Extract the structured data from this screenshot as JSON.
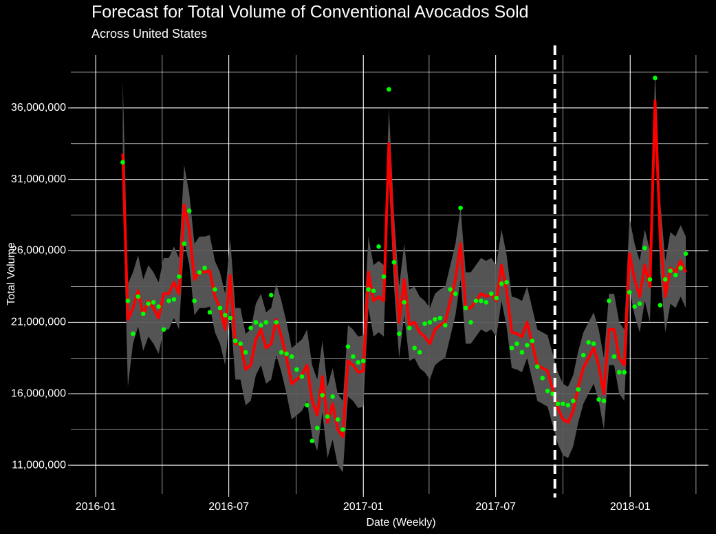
{
  "chart_data": {
    "type": "line",
    "title": "Forecast for Total Volume of Conventional Avocados Sold",
    "subtitle": "Across United States",
    "x_label": "Date (Weekly)",
    "y_label": "Total Volume",
    "x": [
      "2016-02-07",
      "2016-02-14",
      "2016-02-21",
      "2016-02-28",
      "2016-03-06",
      "2016-03-13",
      "2016-03-20",
      "2016-03-27",
      "2016-04-03",
      "2016-04-10",
      "2016-04-17",
      "2016-04-24",
      "2016-05-01",
      "2016-05-08",
      "2016-05-15",
      "2016-05-22",
      "2016-05-29",
      "2016-06-05",
      "2016-06-12",
      "2016-06-19",
      "2016-06-26",
      "2016-07-03",
      "2016-07-10",
      "2016-07-17",
      "2016-07-24",
      "2016-07-31",
      "2016-08-07",
      "2016-08-14",
      "2016-08-21",
      "2016-08-28",
      "2016-09-04",
      "2016-09-11",
      "2016-09-18",
      "2016-09-25",
      "2016-10-02",
      "2016-10-09",
      "2016-10-16",
      "2016-10-23",
      "2016-10-30",
      "2016-11-06",
      "2016-11-13",
      "2016-11-20",
      "2016-11-27",
      "2016-12-04",
      "2016-12-11",
      "2016-12-18",
      "2016-12-25",
      "2017-01-01",
      "2017-01-08",
      "2017-01-15",
      "2017-01-22",
      "2017-01-29",
      "2017-02-05",
      "2017-02-12",
      "2017-02-19",
      "2017-02-26",
      "2017-03-05",
      "2017-03-12",
      "2017-03-19",
      "2017-03-26",
      "2017-04-02",
      "2017-04-09",
      "2017-04-16",
      "2017-04-23",
      "2017-04-30",
      "2017-05-07",
      "2017-05-14",
      "2017-05-21",
      "2017-05-28",
      "2017-06-04",
      "2017-06-11",
      "2017-06-18",
      "2017-06-25",
      "2017-07-02",
      "2017-07-09",
      "2017-07-16",
      "2017-07-23",
      "2017-07-30",
      "2017-08-06",
      "2017-08-13",
      "2017-08-20",
      "2017-08-27",
      "2017-09-03",
      "2017-09-10",
      "2017-09-17",
      "2017-09-24",
      "2017-10-01",
      "2017-10-08",
      "2017-10-15",
      "2017-10-22",
      "2017-10-29",
      "2017-11-05",
      "2017-11-12",
      "2017-11-19",
      "2017-11-26",
      "2017-12-03",
      "2017-12-10",
      "2017-12-17",
      "2017-12-24",
      "2017-12-31",
      "2018-01-07",
      "2018-01-14",
      "2018-01-21",
      "2018-01-28",
      "2018-02-04",
      "2018-02-11",
      "2018-02-18",
      "2018-02-25",
      "2018-03-04",
      "2018-03-11",
      "2018-03-18"
    ],
    "forecast": {
      "color": "#ff0000",
      "values": [
        32800000.0,
        21200000.0,
        22000000.0,
        23200000.0,
        21500000.0,
        22500000.0,
        22000000.0,
        21300000.0,
        23000000.0,
        23000000.0,
        23800000.0,
        23000000.0,
        29200000.0,
        27500000.0,
        24000000.0,
        24500000.0,
        24500000.0,
        24600000.0,
        22800000.0,
        22000000.0,
        20500000.0,
        24300000.0,
        19500000.0,
        19500000.0,
        17700000.0,
        18000000.0,
        19800000.0,
        20500000.0,
        19200000.0,
        19500000.0,
        21200000.0,
        20000000.0,
        18500000.0,
        16700000.0,
        17000000.0,
        17300000.0,
        18000000.0,
        15500000.0,
        14500000.0,
        17200000.0,
        14000000.0,
        15300000.0,
        13500000.0,
        13000000.0,
        18300000.0,
        18000000.0,
        17500000.0,
        17600000.0,
        24500000.0,
        22500000.0,
        22800000.0,
        22500000.0,
        33500000.0,
        26000000.0,
        21000000.0,
        24000000.0,
        20800000.0,
        21000000.0,
        20300000.0,
        20000000.0,
        19500000.0,
        20500000.0,
        20800000.0,
        21000000.0,
        22500000.0,
        24000000.0,
        26500000.0,
        22000000.0,
        22000000.0,
        22500000.0,
        23000000.0,
        22800000.0,
        23000000.0,
        22500000.0,
        25000000.0,
        23200000.0,
        20300000.0,
        20200000.0,
        20000000.0,
        21000000.0,
        19500000.0,
        18000000.0,
        17800000.0,
        17600000.0,
        16300000.0,
        15000000.0,
        14200000.0,
        14000000.0,
        14800000.0,
        16500000.0,
        17800000.0,
        18500000.0,
        19200000.0,
        18000000.0,
        16000000.0,
        20500000.0,
        20500000.0,
        18500000.0,
        18000000.0,
        25800000.0,
        24000000.0,
        22800000.0,
        25000000.0,
        23500000.0,
        36500000.0,
        27000000.0,
        22800000.0,
        24800000.0,
        24500000.0,
        25300000.0,
        24500000.0
      ]
    },
    "band": {
      "color": "#595959",
      "upper": [
        38000000.0,
        23700000.0,
        24500000.0,
        25700000.0,
        24000000.0,
        25000000.0,
        24500000.0,
        23800000.0,
        25500000.0,
        25500000.0,
        26300000.0,
        25500000.0,
        32000000.0,
        30000000.0,
        26500000.0,
        27000000.0,
        27000000.0,
        27100000.0,
        25300000.0,
        24500000.0,
        23000000.0,
        26800000.0,
        22000000.0,
        22000000.0,
        20200000.0,
        20500000.0,
        22300000.0,
        23000000.0,
        21700000.0,
        22000000.0,
        23700000.0,
        22500000.0,
        21000000.0,
        19200000.0,
        19500000.0,
        19800000.0,
        20500000.0,
        18000000.0,
        17000000.0,
        19700000.0,
        16500000.0,
        17800000.0,
        16000000.0,
        15500000.0,
        20800000.0,
        20500000.0,
        20000000.0,
        20100000.0,
        27000000.0,
        25000000.0,
        25300000.0,
        25000000.0,
        36000000.0,
        28500000.0,
        23500000.0,
        26500000.0,
        23300000.0,
        23500000.0,
        22800000.0,
        22500000.0,
        22000000.0,
        23000000.0,
        23300000.0,
        23500000.0,
        25000000.0,
        26500000.0,
        29000000.0,
        24500000.0,
        24500000.0,
        25000000.0,
        25500000.0,
        25300000.0,
        25500000.0,
        25000000.0,
        27500000.0,
        25700000.0,
        22800000.0,
        22700000.0,
        22500000.0,
        23500000.0,
        22000000.0,
        20500000.0,
        20300000.0,
        20100000.0,
        18800000.0,
        17500000.0,
        16700000.0,
        16500000.0,
        17300000.0,
        19000000.0,
        20300000.0,
        21000000.0,
        21700000.0,
        20500000.0,
        18500000.0,
        23000000.0,
        23000000.0,
        21000000.0,
        20500000.0,
        28300000.0,
        26500000.0,
        25300000.0,
        27500000.0,
        26000000.0,
        38500000.0,
        29500000.0,
        25300000.0,
        27300000.0,
        27000000.0,
        27800000.0,
        27000000.0
      ],
      "lower": [
        30300000.0,
        16500000.0,
        19500000.0,
        20700000.0,
        19000000.0,
        20000000.0,
        19500000.0,
        18800000.0,
        20500000.0,
        20500000.0,
        21300000.0,
        20500000.0,
        26700000.0,
        25000000.0,
        21500000.0,
        22000000.0,
        22000000.0,
        22100000.0,
        20300000.0,
        19500000.0,
        18000000.0,
        21800000.0,
        17000000.0,
        17000000.0,
        15200000.0,
        15500000.0,
        17300000.0,
        18000000.0,
        16700000.0,
        17000000.0,
        18700000.0,
        17500000.0,
        16000000.0,
        14200000.0,
        14500000.0,
        14800000.0,
        15500000.0,
        13000000.0,
        12000000.0,
        14700000.0,
        11500000.0,
        12800000.0,
        11000000.0,
        10500000.0,
        15800000.0,
        15500000.0,
        15000000.0,
        15100000.0,
        22000000.0,
        20000000.0,
        20300000.0,
        20000000.0,
        31000000.0,
        23500000.0,
        18500000.0,
        21500000.0,
        18300000.0,
        18500000.0,
        17800000.0,
        17500000.0,
        17000000.0,
        18000000.0,
        18300000.0,
        18500000.0,
        20000000.0,
        21500000.0,
        24000000.0,
        19500000.0,
        19500000.0,
        20000000.0,
        20500000.0,
        20300000.0,
        20500000.0,
        20000000.0,
        22500000.0,
        20700000.0,
        17800000.0,
        17700000.0,
        17500000.0,
        18500000.0,
        17000000.0,
        15500000.0,
        15300000.0,
        15100000.0,
        13800000.0,
        12500000.0,
        11700000.0,
        11500000.0,
        12300000.0,
        14000000.0,
        15300000.0,
        16000000.0,
        16700000.0,
        15500000.0,
        13500000.0,
        18000000.0,
        18000000.0,
        16000000.0,
        15500000.0,
        23300000.0,
        21500000.0,
        20300000.0,
        22500000.0,
        21000000.0,
        34000000.0,
        24500000.0,
        20300000.0,
        22300000.0,
        22000000.0,
        22800000.0,
        22000000.0
      ]
    },
    "actual": {
      "color": "#00ff00",
      "values": [
        32200000.0,
        22500000.0,
        20200000.0,
        22800000.0,
        21600000.0,
        22300000.0,
        22400000.0,
        22100000.0,
        20500000.0,
        22500000.0,
        22600000.0,
        24200000.0,
        26500000.0,
        28800000.0,
        22500000.0,
        24500000.0,
        24800000.0,
        21700000.0,
        23300000.0,
        22000000.0,
        21500000.0,
        21300000.0,
        19700000.0,
        19500000.0,
        18900000.0,
        20600000.0,
        21000000.0,
        20800000.0,
        21000000.0,
        22900000.0,
        21000000.0,
        18900000.0,
        18800000.0,
        18600000.0,
        17700000.0,
        17200000.0,
        15200000.0,
        12700000.0,
        13600000.0,
        15900000.0,
        14400000.0,
        15800000.0,
        14200000.0,
        13500000.0,
        19300000.0,
        18600000.0,
        18200000.0,
        18300000.0,
        23300000.0,
        23200000.0,
        26300000.0,
        24200000.0,
        37300000.0,
        25200000.0,
        20200000.0,
        22400000.0,
        20600000.0,
        19200000.0,
        18900000.0,
        20900000.0,
        21000000.0,
        21200000.0,
        21300000.0,
        20800000.0,
        23300000.0,
        23000000.0,
        29000000.0,
        22000000.0,
        21000000.0,
        22500000.0,
        22500000.0,
        22400000.0,
        23000000.0,
        22700000.0,
        23700000.0,
        23800000.0,
        19200000.0,
        19500000.0,
        18900000.0,
        19400000.0,
        19700000.0,
        17900000.0,
        17100000.0,
        16200000.0,
        16000000.0,
        15300000.0,
        15300000.0,
        15200000.0,
        15500000.0,
        16300000.0,
        18700000.0,
        19600000.0,
        19500000.0,
        15600000.0,
        15500000.0,
        22500000.0,
        18600000.0,
        17500000.0,
        17500000.0,
        23100000.0,
        22100000.0,
        22300000.0,
        26200000.0,
        24000000.0,
        38100000.0,
        22200000.0,
        24000000.0,
        24600000.0,
        24300000.0,
        24800000.0,
        25800000.0
      ]
    },
    "vline": "2017-09-20",
    "xlim": [
      "2015-11-28",
      "2018-04-18"
    ],
    "xticks": [
      {
        "value": "2016-01-01",
        "label": "2016-01"
      },
      {
        "value": "2016-07-01",
        "label": "2016-07"
      },
      {
        "value": "2017-01-01",
        "label": "2017-01"
      },
      {
        "value": "2017-07-01",
        "label": "2017-07"
      },
      {
        "value": "2018-01-01",
        "label": "2018-01"
      }
    ],
    "minor_xticks": [
      "2016-04-01",
      "2016-10-01",
      "2017-04-01",
      "2017-10-01",
      "2018-04-01"
    ],
    "ylim": [
      8980000.0,
      39700000.0
    ],
    "yticks": [
      {
        "value": 11000000,
        "label": "11,000,000"
      },
      {
        "value": 16000000,
        "label": "16,000,000"
      },
      {
        "value": 21000000,
        "label": "21,000,000"
      },
      {
        "value": 26000000,
        "label": "26,000,000"
      },
      {
        "value": 31000000,
        "label": "31,000,000"
      },
      {
        "value": 36000000,
        "label": "36,000,000"
      }
    ],
    "minor_yticks": [
      13500000,
      18500000,
      23500000,
      28500000,
      33500000,
      38500000
    ],
    "grid": true
  }
}
